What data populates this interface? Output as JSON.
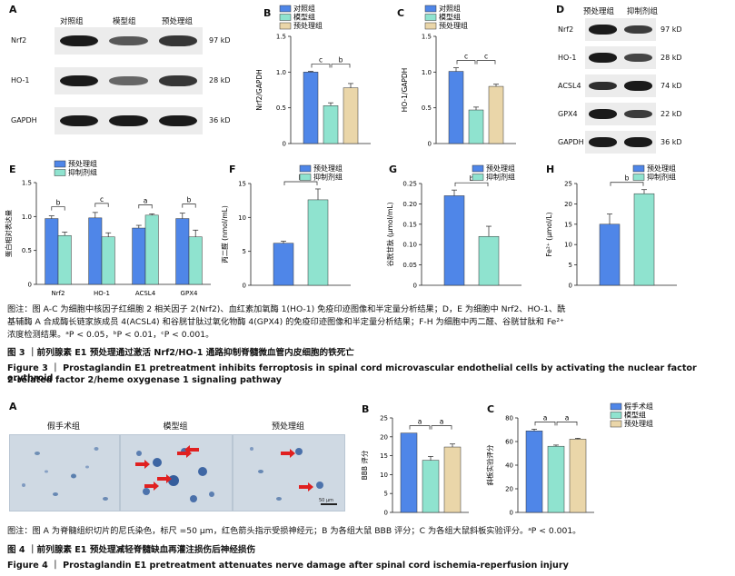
{
  "fig3": {
    "panelA": {
      "label": "A",
      "headers": [
        "对照组",
        "模型组",
        "预处理组"
      ],
      "rows": [
        {
          "name": "Nrf2",
          "kd": "97 kD",
          "intensity": [
            1.0,
            0.55,
            0.8
          ]
        },
        {
          "name": "HO-1",
          "kd": "28 kD",
          "intensity": [
            1.0,
            0.45,
            0.8
          ]
        },
        {
          "name": "GAPDH",
          "kd": "36 kD",
          "intensity": [
            1.0,
            1.0,
            1.0
          ]
        }
      ]
    },
    "panelD": {
      "label": "D",
      "headers": [
        "预处理组",
        "抑制剂组"
      ],
      "rows": [
        {
          "name": "Nrf2",
          "kd": "97 kD",
          "intensity": [
            1.0,
            0.75
          ]
        },
        {
          "name": "HO-1",
          "kd": "28 kD",
          "intensity": [
            1.0,
            0.7
          ]
        },
        {
          "name": "ACSL4",
          "kd": "74 kD",
          "intensity": [
            0.85,
            1.0
          ]
        },
        {
          "name": "GPX4",
          "kd": "22 kD",
          "intensity": [
            1.0,
            0.75
          ]
        },
        {
          "name": "GAPDH",
          "kd": "36 kD",
          "intensity": [
            1.0,
            1.0
          ]
        }
      ]
    },
    "caption_lines": [
      "图注：图 A-C 为细胞中核因子红细胞 2 相关因子 2(Nrf2)、血红素加氧酶 1(HO-1) 免疫印迹图像和半定量分析结果；D，E 为细胞中 Nrf2、HO-1、酰",
      "基辅酶 A 合成酶长链家族成员 4(ACSL4) 和谷胱甘肽过氧化物酶 4(GPX4) 的免疫印迹图像和半定量分析结果；F-H 为细胞中丙二醛、谷胱甘肽和 Fe²⁺",
      "浓度检测结果。ᵃP < 0.05，ᵇP < 0.01，ᶜP < 0.001。"
    ],
    "title_cn": "图 3 ｜前列腺素 E1 预处理通过激活 Nrf2/HO-1 通路抑制脊髓微血管内皮细胞的铁死亡",
    "title_en_1": "Figure 3 ｜ Prostaglandin E1 pretreatment inhibits ferroptosis in spinal cord microvascular endothelial cells by activating the nuclear factor erythroid",
    "title_en_2": "2-related factor 2/heme oxygenase 1 signaling pathway"
  },
  "fig4": {
    "panelA": {
      "label": "A",
      "titles": [
        "假手术组",
        "模型组",
        "预处理组"
      ],
      "scalebar": "50 μm"
    },
    "caption": "图注：图 A 为脊髓组织切片的尼氏染色，标尺 =50 μm，红色箭头指示受损神经元；B 为各组大鼠 BBB 评分；C 为各组大鼠斜板实验评分。ᵃP < 0.001。",
    "title_cn": "图 4 ｜前列腺素 E1 预处理减轻脊髓缺血再灌注损伤后神经损伤",
    "title_en": "Figure 4 ｜ Prostaglandin E1 pretreatment attenuates nerve damage after spinal cord ischemia-reperfusion injury"
  },
  "colors": {
    "blue": "#4f86e8",
    "green": "#8fe3cf",
    "tan": "#ead6a9",
    "red": "#e02020"
  },
  "chart_data": [
    {
      "id": "B",
      "type": "bar",
      "ylabel": "Nrf2/GAPDH",
      "ylim": [
        0,
        1.5
      ],
      "yticks": [
        "0",
        "0.5",
        "1.0",
        "1.5"
      ],
      "categories": [
        "对照组",
        "模型组",
        "预处理组"
      ],
      "values": [
        1.0,
        0.53,
        0.78
      ],
      "errors": [
        0.01,
        0.04,
        0.06
      ],
      "legend": [
        "对照组",
        "模型组",
        "预处理组"
      ],
      "sig": [
        {
          "a": 0,
          "b": 1,
          "label": "c"
        },
        {
          "a": 1,
          "b": 2,
          "label": "b"
        }
      ]
    },
    {
      "id": "C",
      "type": "bar",
      "ylabel": "HO-1/GAPDH",
      "ylim": [
        0,
        1.5
      ],
      "yticks": [
        "0",
        "0.5",
        "1.0",
        "1.5"
      ],
      "categories": [
        "对照组",
        "模型组",
        "预处理组"
      ],
      "values": [
        1.01,
        0.47,
        0.8
      ],
      "errors": [
        0.05,
        0.04,
        0.03
      ],
      "legend": [
        "对照组",
        "模型组",
        "预处理组"
      ],
      "sig": [
        {
          "a": 0,
          "b": 1,
          "label": "c"
        },
        {
          "a": 1,
          "b": 2,
          "label": "c"
        }
      ]
    },
    {
      "id": "E",
      "type": "bar",
      "ylabel": "蛋白相对表达量",
      "ylim": [
        0,
        1.5
      ],
      "yticks": [
        "0",
        "0.5",
        "1.0",
        "1.5"
      ],
      "categories": [
        "Nrf2",
        "HO-1",
        "ACSL4",
        "GPX4"
      ],
      "series": [
        {
          "name": "预处理组",
          "values": [
            0.97,
            0.98,
            0.83,
            0.97
          ],
          "errors": [
            0.04,
            0.08,
            0.04,
            0.08
          ]
        },
        {
          "name": "抑制剂组",
          "values": [
            0.72,
            0.7,
            1.02,
            0.7
          ],
          "errors": [
            0.05,
            0.06,
            0.02,
            0.1
          ]
        }
      ],
      "legend": [
        "预处理组",
        "抑制剂组"
      ],
      "sig": [
        "b",
        "c",
        "a",
        "b"
      ]
    },
    {
      "id": "F",
      "type": "bar",
      "ylabel": "丙二醛 (nmol/mL)",
      "ylim": [
        0,
        15
      ],
      "yticks": [
        "0",
        "5",
        "10",
        "15"
      ],
      "categories": [
        "预处理组",
        "抑制剂组"
      ],
      "values": [
        6.2,
        12.6
      ],
      "errors": [
        0.3,
        1.6
      ],
      "legend": [
        "预处理组",
        "抑制剂组"
      ],
      "sig": [
        {
          "a": 0,
          "b": 1,
          "label": "b"
        }
      ]
    },
    {
      "id": "G",
      "type": "bar",
      "ylabel": "谷胱甘肽 (μmol/mL)",
      "ylim": [
        0,
        0.25
      ],
      "yticks": [
        "0",
        "0.05",
        "0.10",
        "0.15",
        "0.20",
        "0.25"
      ],
      "categories": [
        "预处理组",
        "抑制剂组"
      ],
      "values": [
        0.22,
        0.12
      ],
      "errors": [
        0.014,
        0.025
      ],
      "legend": [
        "预处理组",
        "抑制剂组"
      ],
      "sig": [
        {
          "a": 0,
          "b": 1,
          "label": "b"
        }
      ]
    },
    {
      "id": "H",
      "type": "bar",
      "ylabel": "Fe²⁺ (μmol/L)",
      "ylim": [
        0,
        25
      ],
      "yticks": [
        "0",
        "5",
        "10",
        "15",
        "20",
        "25"
      ],
      "categories": [
        "预处理组",
        "抑制剂组"
      ],
      "values": [
        15.0,
        22.5
      ],
      "errors": [
        2.5,
        1.0
      ],
      "legend": [
        "预处理组",
        "抑制剂组"
      ],
      "sig": [
        {
          "a": 0,
          "b": 1,
          "label": "b"
        }
      ]
    },
    {
      "id": "B4",
      "type": "bar",
      "ylabel": "BBB 评分",
      "ylim": [
        0,
        25
      ],
      "yticks": [
        "0",
        "5",
        "10",
        "15",
        "20",
        "25"
      ],
      "categories": [
        "假手术组",
        "模型组",
        "预处理组"
      ],
      "values": [
        21.0,
        13.8,
        17.3
      ],
      "errors": [
        0,
        1.0,
        0.8
      ],
      "legend": [],
      "sig": [
        {
          "a": 0,
          "b": 1,
          "label": "a"
        },
        {
          "a": 1,
          "b": 2,
          "label": "a"
        }
      ]
    },
    {
      "id": "C4",
      "type": "bar",
      "ylabel": "斜板实验评分",
      "ylim": [
        0,
        80
      ],
      "yticks": [
        "0",
        "20",
        "40",
        "60",
        "80"
      ],
      "categories": [
        "假手术组",
        "模型组",
        "预处理组"
      ],
      "values": [
        69,
        56,
        62
      ],
      "errors": [
        1.5,
        1.0,
        0.8
      ],
      "legend": [
        "假手术组",
        "模型组",
        "预处理组"
      ],
      "sig": [
        {
          "a": 0,
          "b": 1,
          "label": "a"
        },
        {
          "a": 1,
          "b": 2,
          "label": "a"
        }
      ]
    }
  ]
}
